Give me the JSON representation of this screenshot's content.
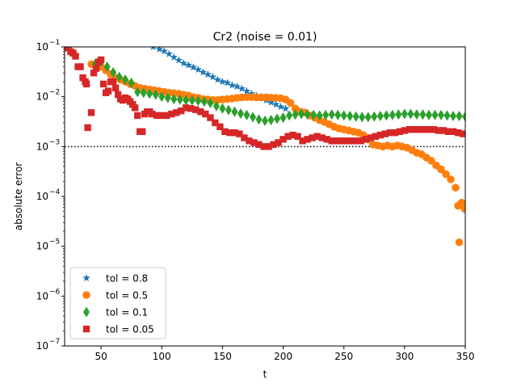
{
  "chart_data": {
    "type": "scatter",
    "title": "Cr2 (noise = 0.01)",
    "xlabel": "t",
    "ylabel": "absolute error",
    "xlim": [
      20,
      350
    ],
    "ylim": [
      1e-07,
      0.1
    ],
    "yscale": "log",
    "grid": false,
    "legend_loc": "lower-left",
    "x_ticks": [
      {
        "v": 50,
        "label": "50"
      },
      {
        "v": 100,
        "label": "100"
      },
      {
        "v": 150,
        "label": "150"
      },
      {
        "v": 200,
        "label": "200"
      },
      {
        "v": 250,
        "label": "250"
      },
      {
        "v": 300,
        "label": "300"
      },
      {
        "v": 350,
        "label": "350"
      }
    ],
    "y_ticks": [
      {
        "e": -7,
        "label": "10",
        "exp": "−7"
      },
      {
        "e": -6,
        "label": "10",
        "exp": "−6"
      },
      {
        "e": -5,
        "label": "10",
        "exp": "−5"
      },
      {
        "e": -4,
        "label": "10",
        "exp": "−4"
      },
      {
        "e": -3,
        "label": "10",
        "exp": "−3"
      },
      {
        "e": -2,
        "label": "10",
        "exp": "−2"
      },
      {
        "e": -1,
        "label": "10",
        "exp": "−1"
      }
    ],
    "reference_line": {
      "y": 0.001,
      "style": "dotted",
      "color": "#000000"
    },
    "series": [
      {
        "name": "tol = 0.8",
        "marker": "star",
        "color": "#1f77b4",
        "points": [
          [
            93,
            0.1
          ],
          [
            98,
            0.09
          ],
          [
            102,
            0.082
          ],
          [
            106,
            0.072
          ],
          [
            110,
            0.062
          ],
          [
            114,
            0.054
          ],
          [
            118,
            0.047
          ],
          [
            122,
            0.043
          ],
          [
            126,
            0.039
          ],
          [
            130,
            0.035
          ],
          [
            134,
            0.031
          ],
          [
            138,
            0.028
          ],
          [
            142,
            0.025
          ],
          [
            146,
            0.022
          ],
          [
            150,
            0.02
          ],
          [
            154,
            0.019
          ],
          [
            158,
            0.017
          ],
          [
            162,
            0.016
          ],
          [
            166,
            0.0145
          ],
          [
            170,
            0.013
          ],
          [
            174,
            0.0115
          ],
          [
            178,
            0.0105
          ],
          [
            182,
            0.0095
          ],
          [
            186,
            0.0085
          ],
          [
            190,
            0.0077
          ],
          [
            194,
            0.007
          ],
          [
            198,
            0.0063
          ],
          [
            202,
            0.0058
          ]
        ]
      },
      {
        "name": "tol = 0.5",
        "marker": "circle",
        "color": "#ff7f0e",
        "points": [
          [
            42,
            0.045
          ],
          [
            46,
            0.042
          ],
          [
            50,
            0.04
          ],
          [
            54,
            0.034
          ],
          [
            58,
            0.028
          ],
          [
            62,
            0.024
          ],
          [
            66,
            0.022
          ],
          [
            70,
            0.02
          ],
          [
            74,
            0.018
          ],
          [
            78,
            0.0165
          ],
          [
            82,
            0.015
          ],
          [
            86,
            0.0145
          ],
          [
            90,
            0.014
          ],
          [
            94,
            0.0135
          ],
          [
            98,
            0.013
          ],
          [
            102,
            0.0125
          ],
          [
            106,
            0.012
          ],
          [
            110,
            0.0118
          ],
          [
            114,
            0.0115
          ],
          [
            118,
            0.011
          ],
          [
            122,
            0.0105
          ],
          [
            126,
            0.0098
          ],
          [
            130,
            0.0095
          ],
          [
            134,
            0.009
          ],
          [
            138,
            0.0088
          ],
          [
            142,
            0.0086
          ],
          [
            146,
            0.0086
          ],
          [
            150,
            0.0088
          ],
          [
            154,
            0.009
          ],
          [
            158,
            0.0092
          ],
          [
            162,
            0.0095
          ],
          [
            166,
            0.0097
          ],
          [
            170,
            0.0098
          ],
          [
            174,
            0.0098
          ],
          [
            178,
            0.0097
          ],
          [
            182,
            0.0097
          ],
          [
            186,
            0.0097
          ],
          [
            190,
            0.0096
          ],
          [
            194,
            0.0095
          ],
          [
            198,
            0.0093
          ],
          [
            202,
            0.0088
          ],
          [
            206,
            0.0075
          ],
          [
            210,
            0.0058
          ],
          [
            214,
            0.005
          ],
          [
            218,
            0.0048
          ],
          [
            222,
            0.0042
          ],
          [
            226,
            0.0038
          ],
          [
            230,
            0.0034
          ],
          [
            234,
            0.0031
          ],
          [
            238,
            0.0028
          ],
          [
            242,
            0.0025
          ],
          [
            246,
            0.0023
          ],
          [
            250,
            0.0022
          ],
          [
            254,
            0.0021
          ],
          [
            258,
            0.002
          ],
          [
            262,
            0.0019
          ],
          [
            266,
            0.0017
          ],
          [
            270,
            0.0014
          ],
          [
            274,
            0.0011
          ],
          [
            278,
            0.00105
          ],
          [
            282,
            0.001
          ],
          [
            286,
            0.00105
          ],
          [
            290,
            0.001
          ],
          [
            294,
            0.00105
          ],
          [
            298,
            0.001
          ],
          [
            302,
            0.00095
          ],
          [
            306,
            0.00085
          ],
          [
            310,
            0.00075
          ],
          [
            314,
            0.0007
          ],
          [
            318,
            0.0006
          ],
          [
            322,
            0.00052
          ],
          [
            326,
            0.00042
          ],
          [
            330,
            0.00035
          ],
          [
            334,
            0.00028
          ],
          [
            338,
            0.00022
          ],
          [
            342,
            0.00015
          ],
          [
            344,
            6.5e-05
          ],
          [
            345,
            1.2e-05
          ],
          [
            347,
            7.5e-05
          ],
          [
            349,
            6e-05
          ],
          [
            350,
            5.5e-05
          ]
        ]
      },
      {
        "name": "tol = 0.1",
        "marker": "diamond",
        "color": "#2ca02c",
        "points": [
          [
            45,
            0.045
          ],
          [
            50,
            0.05
          ],
          [
            55,
            0.04
          ],
          [
            60,
            0.031
          ],
          [
            65,
            0.025
          ],
          [
            70,
            0.022
          ],
          [
            75,
            0.019
          ],
          [
            80,
            0.0125
          ],
          [
            85,
            0.012
          ],
          [
            90,
            0.0115
          ],
          [
            95,
            0.011
          ],
          [
            100,
            0.01
          ],
          [
            105,
            0.0095
          ],
          [
            110,
            0.009
          ],
          [
            115,
            0.0088
          ],
          [
            120,
            0.0085
          ],
          [
            125,
            0.0085
          ],
          [
            130,
            0.0083
          ],
          [
            135,
            0.008
          ],
          [
            140,
            0.0075
          ],
          [
            145,
            0.0065
          ],
          [
            150,
            0.0058
          ],
          [
            155,
            0.0054
          ],
          [
            160,
            0.005
          ],
          [
            165,
            0.0046
          ],
          [
            170,
            0.0043
          ],
          [
            175,
            0.0039
          ],
          [
            180,
            0.0035
          ],
          [
            185,
            0.0033
          ],
          [
            190,
            0.0034
          ],
          [
            195,
            0.0036
          ],
          [
            200,
            0.0038
          ],
          [
            205,
            0.0042
          ],
          [
            210,
            0.0044
          ],
          [
            215,
            0.0045
          ],
          [
            220,
            0.0044
          ],
          [
            225,
            0.0043
          ],
          [
            230,
            0.0042
          ],
          [
            235,
            0.0043
          ],
          [
            240,
            0.0044
          ],
          [
            245,
            0.0043
          ],
          [
            250,
            0.0042
          ],
          [
            255,
            0.0041
          ],
          [
            260,
            0.004
          ],
          [
            265,
            0.0039
          ],
          [
            270,
            0.0039
          ],
          [
            275,
            0.004
          ],
          [
            280,
            0.0041
          ],
          [
            285,
            0.0042
          ],
          [
            290,
            0.0043
          ],
          [
            295,
            0.0044
          ],
          [
            300,
            0.0045
          ],
          [
            305,
            0.0045
          ],
          [
            310,
            0.0044
          ],
          [
            315,
            0.0044
          ],
          [
            320,
            0.0043
          ],
          [
            325,
            0.0043
          ],
          [
            330,
            0.0043
          ],
          [
            335,
            0.0042
          ],
          [
            340,
            0.0041
          ],
          [
            345,
            0.0041
          ],
          [
            350,
            0.004
          ]
        ]
      },
      {
        "name": "tol = 0.05",
        "marker": "square",
        "color": "#d62728",
        "points": [
          [
            23,
            0.095
          ],
          [
            25,
            0.08
          ],
          [
            27,
            0.075
          ],
          [
            29,
            0.065
          ],
          [
            31,
            0.04
          ],
          [
            33,
            0.04
          ],
          [
            35,
            0.024
          ],
          [
            37,
            0.02
          ],
          [
            38,
            0.018
          ],
          [
            39,
            0.0024
          ],
          [
            42,
            0.0048
          ],
          [
            44,
            0.03
          ],
          [
            46,
            0.037
          ],
          [
            48,
            0.05
          ],
          [
            50,
            0.055
          ],
          [
            52,
            0.018
          ],
          [
            54,
            0.012
          ],
          [
            56,
            0.013
          ],
          [
            58,
            0.02
          ],
          [
            60,
            0.02
          ],
          [
            62,
            0.015
          ],
          [
            64,
            0.011
          ],
          [
            66,
            0.009
          ],
          [
            68,
            0.0085
          ],
          [
            70,
            0.0095
          ],
          [
            72,
            0.009
          ],
          [
            74,
            0.008
          ],
          [
            76,
            0.007
          ],
          [
            78,
            0.006
          ],
          [
            80,
            0.0042
          ],
          [
            82,
            0.002
          ],
          [
            84,
            0.002
          ],
          [
            86,
            0.0045
          ],
          [
            88,
            0.005
          ],
          [
            90,
            0.005
          ],
          [
            92,
            0.0045
          ],
          [
            96,
            0.0042
          ],
          [
            100,
            0.0042
          ],
          [
            104,
            0.0042
          ],
          [
            108,
            0.0045
          ],
          [
            112,
            0.0048
          ],
          [
            116,
            0.0052
          ],
          [
            120,
            0.006
          ],
          [
            124,
            0.0058
          ],
          [
            128,
            0.0055
          ],
          [
            132,
            0.005
          ],
          [
            136,
            0.0045
          ],
          [
            140,
            0.0038
          ],
          [
            144,
            0.003
          ],
          [
            148,
            0.0025
          ],
          [
            152,
            0.002
          ],
          [
            156,
            0.0019
          ],
          [
            160,
            0.0019
          ],
          [
            164,
            0.0018
          ],
          [
            168,
            0.0015
          ],
          [
            172,
            0.0013
          ],
          [
            176,
            0.0012
          ],
          [
            180,
            0.0011
          ],
          [
            184,
            0.001
          ],
          [
            188,
            0.001
          ],
          [
            192,
            0.0011
          ],
          [
            196,
            0.0012
          ],
          [
            200,
            0.0014
          ],
          [
            204,
            0.0016
          ],
          [
            208,
            0.0017
          ],
          [
            212,
            0.0016
          ],
          [
            216,
            0.0013
          ],
          [
            220,
            0.0014
          ],
          [
            224,
            0.0015
          ],
          [
            228,
            0.0016
          ],
          [
            232,
            0.0015
          ],
          [
            236,
            0.0014
          ],
          [
            240,
            0.0013
          ],
          [
            244,
            0.0013
          ],
          [
            248,
            0.0013
          ],
          [
            252,
            0.0013
          ],
          [
            256,
            0.0013
          ],
          [
            260,
            0.0013
          ],
          [
            264,
            0.0013
          ],
          [
            268,
            0.0014
          ],
          [
            272,
            0.0015
          ],
          [
            276,
            0.0016
          ],
          [
            280,
            0.0017
          ],
          [
            284,
            0.0018
          ],
          [
            288,
            0.0019
          ],
          [
            292,
            0.0019
          ],
          [
            296,
            0.002
          ],
          [
            300,
            0.0021
          ],
          [
            304,
            0.0022
          ],
          [
            308,
            0.0022
          ],
          [
            312,
            0.0022
          ],
          [
            316,
            0.0022
          ],
          [
            320,
            0.0022
          ],
          [
            324,
            0.0022
          ],
          [
            328,
            0.0021
          ],
          [
            332,
            0.0021
          ],
          [
            336,
            0.002
          ],
          [
            340,
            0.002
          ],
          [
            344,
            0.0019
          ],
          [
            348,
            0.0018
          ]
        ]
      }
    ]
  }
}
